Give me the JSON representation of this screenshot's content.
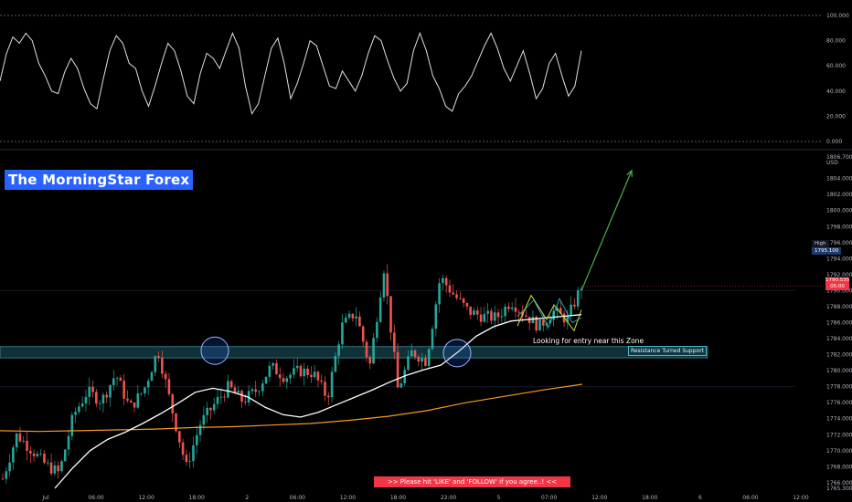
{
  "brand": "The MorningStar Forex",
  "banner": ">>     Please hit 'LIKE' and 'FOLLOW' if you agree..!     <<",
  "zone_note": "Looking for entry near this Zone",
  "zone_label": "Resistance Turned Support",
  "price_tag": {
    "value": "1790.535",
    "sub": "05:00"
  },
  "high_tag": {
    "name": "High",
    "value": "1795.100"
  },
  "currency": "USD",
  "colors": {
    "bull": "#26a69a",
    "bear": "#ef5350",
    "ema_fast": "#ffffff",
    "ema_slow": "#f59a23",
    "arrow": "#4caf50",
    "zone": "#1e5a66"
  },
  "chart_data": [
    {
      "type": "line",
      "name": "oscillator",
      "ylim": [
        0,
        100
      ],
      "y_ticks": [
        "100.000",
        "80.000",
        "60.000",
        "40.000",
        "20.000",
        "0.000"
      ],
      "dashed_levels": [
        100,
        0
      ],
      "values": [
        48,
        70,
        83,
        78,
        86,
        80,
        62,
        52,
        40,
        38,
        55,
        66,
        58,
        42,
        30,
        26,
        50,
        72,
        84,
        78,
        62,
        58,
        40,
        28,
        44,
        62,
        78,
        72,
        56,
        36,
        30,
        54,
        70,
        66,
        58,
        72,
        86,
        74,
        44,
        22,
        30,
        52,
        74,
        82,
        62,
        34,
        46,
        62,
        80,
        76,
        60,
        44,
        42,
        56,
        48,
        40,
        52,
        70,
        84,
        80,
        64,
        50,
        40,
        46,
        72,
        86,
        72,
        52,
        42,
        28,
        24,
        38,
        44,
        52,
        64,
        76,
        86,
        74,
        58,
        48,
        60,
        72,
        54,
        34,
        42,
        62,
        70,
        52,
        36,
        44,
        72
      ]
    },
    {
      "type": "candlestick",
      "name": "price",
      "ylim": [
        1765.3,
        1806.7
      ],
      "y_ticks": [
        "1806.700",
        "1804.000",
        "1802.000",
        "1800.000",
        "1798.000",
        "1796.000",
        "1794.000",
        "1792.000",
        "1790.000",
        "1788.000",
        "1786.000",
        "1784.000",
        "1782.000",
        "1780.000",
        "1778.000",
        "1776.000",
        "1774.000",
        "1772.000",
        "1770.000",
        "1768.000",
        "1766.000",
        "1765.300"
      ],
      "x_ticks": [
        "Jul",
        "06:00",
        "12:00",
        "18:00",
        "2",
        "06:00",
        "12:00",
        "18:00",
        "22:00",
        "5",
        "07:00",
        "12:00",
        "18:00",
        "6",
        "06:00",
        "12:00"
      ],
      "ohlc_anchors": [
        1766.5,
        1772.0,
        1770.2,
        1768.3,
        1767.2,
        1774.4,
        1777.4,
        1776.2,
        1779.6,
        1775.3,
        1777.6,
        1782.6,
        1775.1,
        1767.9,
        1773.4,
        1775.8,
        1778.0,
        1776.2,
        1777.6,
        1780.5,
        1779.2,
        1780.0,
        1779.7,
        1776.6,
        1785.5,
        1787.3,
        1780.5,
        1792.9,
        1777.6,
        1782.4,
        1781.2,
        1791.7,
        1789.4,
        1787.4,
        1786.8,
        1786.6,
        1788.7,
        1787.0,
        1785.5,
        1787.4,
        1786.4,
        1790.6
      ],
      "ema_fast": [
        1765.3,
        1767.8,
        1770.0,
        1771.4,
        1772.3,
        1773.4,
        1774.6,
        1775.9,
        1777.3,
        1777.8,
        1777.4,
        1776.7,
        1775.4,
        1774.5,
        1774.2,
        1774.8,
        1775.7,
        1776.6,
        1777.5,
        1778.5,
        1779.4,
        1780.1,
        1780.7,
        1782.4,
        1784.3,
        1785.5,
        1786.2,
        1786.4,
        1786.6,
        1786.8,
        1787.0
      ],
      "ema_slow": [
        1772.5,
        1772.4,
        1772.5,
        1772.6,
        1772.7,
        1772.9,
        1773.0,
        1773.2,
        1773.4,
        1773.8,
        1774.3,
        1775.0,
        1776.0,
        1776.8,
        1777.6,
        1778.3
      ],
      "zone": [
        1781.6,
        1783.0
      ],
      "last_price": 1790.535,
      "high": 1795.1,
      "projection": [
        1790.0,
        1805.0
      ]
    }
  ]
}
